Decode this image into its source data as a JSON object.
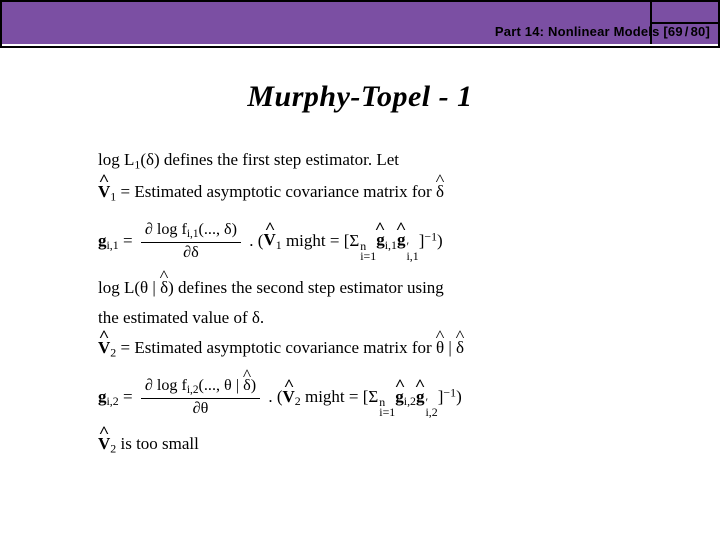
{
  "colors": {
    "purple": "#7b4fa3",
    "navy": "#1b2a6b",
    "black": "#000000",
    "white": "#ffffff"
  },
  "header": {
    "part_label": "Part 14:",
    "part_title": "Nonlinear Models",
    "page_current": "69",
    "page_total": "80"
  },
  "title": "Murphy-Topel  -  1",
  "math": {
    "l1": {
      "a": "log L",
      "a_sub": "1",
      "b": "(δ) defines the first step estimator. Let"
    },
    "l2": {
      "v": "V",
      "v_sub": "1",
      "eq": " = Estimated asymptotic covariance matrix for ",
      "d": "δ"
    },
    "l3": {
      "g": "g",
      "g_sub": "i,1",
      "eq1": " = ",
      "num": "∂ log f",
      "num_sub": "i,1",
      "num_tail": "(..., δ)",
      "den": "∂δ",
      "tail1": ".  (",
      "v": "V",
      "v_sub": "1",
      "tail2": " might = [Σ",
      "sig_sup": "n",
      "sig_sub": "i=1",
      "gh": "g",
      "gh_sub": "i,1",
      "ghp": "g",
      "ghp_sub": "i,1",
      "ghp_sup": "′",
      "tail3": "]",
      "tail3_sup": "−1",
      "tail4": ")"
    },
    "l4": {
      "a": "log L(θ | ",
      "d": "δ",
      "b": ") defines the second step estimator using"
    },
    "l5": "the estimated value of δ.",
    "l6": {
      "v": "V",
      "v_sub": "2",
      "eq": " = Estimated asymptotic covariance matrix for ",
      "t": "θ",
      "bar": " | ",
      "d": "δ"
    },
    "l7": {
      "g": "g",
      "g_sub": "i,2",
      "eq1": " = ",
      "num": "∂ log f",
      "num_sub": "i,2",
      "num_tail1": "(..., θ | ",
      "num_d": "δ",
      "num_tail2": ")",
      "den": "∂θ",
      "tail1": ". (",
      "v": "V",
      "v_sub": "2",
      "tail2": " might = [Σ",
      "sig_sup": "n",
      "sig_sub": "i=1",
      "gh": "g",
      "gh_sub": "i,2",
      "ghp": "g",
      "ghp_sub": "i,2",
      "ghp_sup": "′",
      "tail3": "]",
      "tail3_sup": "−1",
      "tail4": ")"
    },
    "l8": {
      "v": "V",
      "v_sub": "2",
      "tail": " is too small"
    }
  }
}
